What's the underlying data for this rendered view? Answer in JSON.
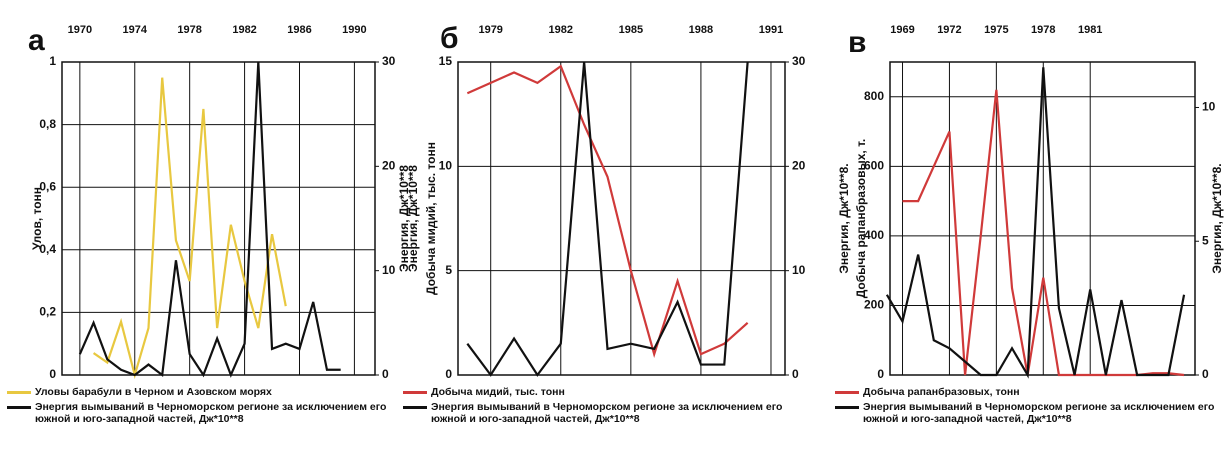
{
  "chart_data": [
    {
      "type": "line",
      "panel_label": "а",
      "ylabel": "Улов, тонн",
      "y2label": "Энергия, Дж*10**8",
      "x": [
        1970,
        1971,
        1972,
        1973,
        1974,
        1975,
        1976,
        1977,
        1978,
        1979,
        1980,
        1981,
        1982,
        1983,
        1984,
        1985,
        1986,
        1987,
        1988,
        1989
      ],
      "xlim": [
        1968.7,
        1991.5
      ],
      "xticks": [
        1970,
        1974,
        1978,
        1982,
        1986,
        1990
      ],
      "ylim": [
        0,
        1
      ],
      "yticks": [
        0,
        {
          "value": 0.2,
          "label": "0,2"
        },
        {
          "value": 0.4,
          "label": "0,4"
        },
        {
          "value": 0.6,
          "label": "0,6"
        },
        {
          "value": 0.8,
          "label": "0,8"
        },
        1
      ],
      "y2lim": [
        0,
        30
      ],
      "y2ticks": [
        0,
        10,
        20,
        30
      ],
      "series": [
        {
          "name": "Уловы барабули в Черном и Азовском морях",
          "color": "#e8c840",
          "axis": "y",
          "values": [
            null,
            0.07,
            0.04,
            0.17,
            0,
            0.15,
            0.95,
            0.43,
            0.3,
            0.85,
            0.15,
            0.48,
            0.3,
            0.15,
            0.45,
            0.22,
            null,
            null,
            null,
            null
          ]
        },
        {
          "name": "Энергия вымываний в Черноморском регионе за исключением его южной и юго-западной частей, Дж*10**8",
          "color": "#111111",
          "axis": "y2",
          "values": [
            2,
            5,
            1.5,
            0.5,
            0,
            1,
            0,
            11,
            2,
            0,
            3.5,
            0,
            3,
            30,
            2.5,
            3,
            2.5,
            7,
            0.5,
            0.5
          ]
        }
      ]
    },
    {
      "type": "line",
      "panel_label": "б",
      "ylabel": "Добыча мидий, тыс. тонн",
      "y2label": "Энергия, Дж*10**8",
      "x": [
        1978,
        1979,
        1980,
        1981,
        1982,
        1983,
        1984,
        1985,
        1986,
        1987,
        1988,
        1989,
        1990
      ],
      "xlim": [
        1977.6,
        1991.6
      ],
      "xticks": [
        1979,
        1982,
        1985,
        1988,
        1991
      ],
      "ylim": [
        0,
        15
      ],
      "yticks": [
        0,
        5,
        10,
        15
      ],
      "y2lim": [
        0,
        30
      ],
      "y2ticks": [
        0,
        10,
        20,
        30
      ],
      "series": [
        {
          "name": "Добыча мидий, тыс. тонн",
          "color": "#d03a3a",
          "axis": "y",
          "values": [
            13.5,
            14,
            14.5,
            14,
            14.8,
            12,
            9.5,
            5,
            1,
            4.5,
            1,
            1.5,
            2.5
          ]
        },
        {
          "name": "Энергия вымываний в Черноморском регионе за исключением его южной и юго-западной частей, Дж*10**8",
          "color": "#111111",
          "axis": "y2",
          "values": [
            3,
            0,
            3.5,
            0,
            3,
            30,
            2.5,
            3,
            2.5,
            7,
            1,
            1,
            30
          ]
        }
      ]
    },
    {
      "type": "line",
      "panel_label": "в",
      "ylabel": "Добыча рапанбразовых, т.",
      "y2label": "Энергия, Дж*10**8.",
      "x": [
        1968,
        1969,
        1970,
        1971,
        1972,
        1973,
        1974,
        1975,
        1976,
        1977,
        1978,
        1979,
        1980,
        1981,
        1982,
        1983,
        1984,
        1985,
        1986,
        1987
      ],
      "xlim": [
        1968.2,
        1987.7
      ],
      "xticks": [
        1969,
        1972,
        1975,
        1978,
        1981
      ],
      "ylim": [
        0,
        900
      ],
      "yticks": [
        0,
        200,
        400,
        600,
        800
      ],
      "y2lim": [
        0,
        11.7
      ],
      "y2ticks": [
        0,
        5,
        10
      ],
      "series": [
        {
          "name": "Добыча рапанбразовых, тонн",
          "color": "#d03a3a",
          "axis": "y",
          "values": [
            null,
            500,
            500,
            600,
            700,
            0,
            400,
            820,
            250,
            0,
            280,
            0,
            0,
            0,
            0,
            0,
            0,
            5,
            5,
            0
          ]
        },
        {
          "name": "Энергия вымываний в Черноморском регионе за исключением его южной и юго-западной частей, Дж*10**8",
          "color": "#111111",
          "axis": "y2",
          "values": [
            3,
            2,
            4.5,
            1.3,
            1,
            0.5,
            0,
            0,
            1,
            0,
            11.5,
            2.5,
            0,
            3.2,
            0,
            2.8,
            0,
            0,
            0,
            3
          ]
        }
      ]
    }
  ]
}
